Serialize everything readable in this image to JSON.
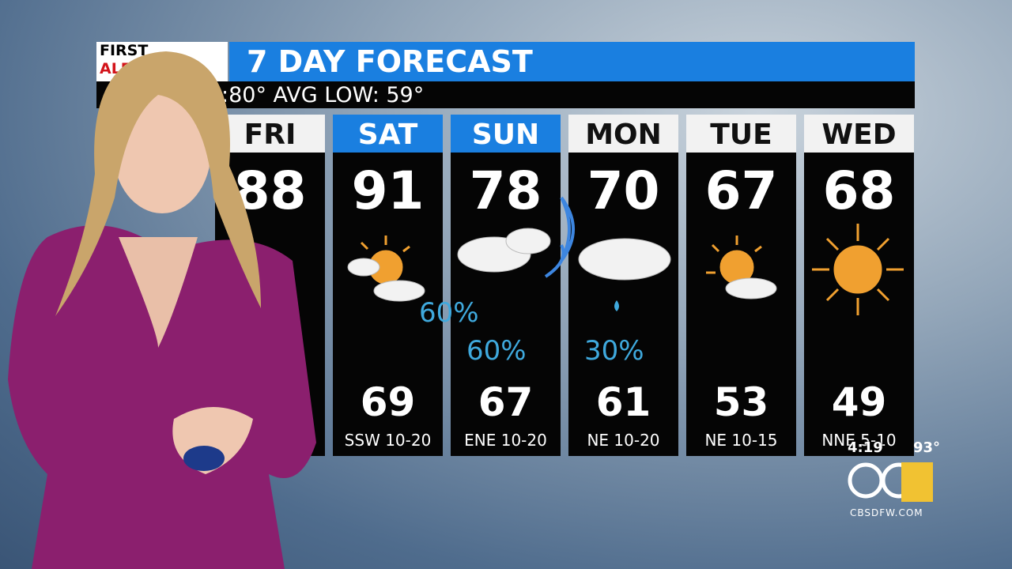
{
  "logo": {
    "line1": "FIRST",
    "line2": "ALERT"
  },
  "title": "7 DAY FORECAST",
  "averages": ":80°  AVG LOW: 59°",
  "days": [
    {
      "day": "FRI",
      "high": "88"
    },
    {
      "day": "SAT",
      "high": "91",
      "low": "69",
      "wind": "SSW 10-20"
    },
    {
      "day": "SUN",
      "high": "78",
      "low": "67",
      "wind": "ENE 10-20"
    },
    {
      "day": "MON",
      "high": "70",
      "low": "61",
      "wind": "NE 10-20"
    },
    {
      "day": "TUE",
      "high": "67",
      "low": "53",
      "wind": "NE 10-15"
    },
    {
      "day": "WED",
      "high": "68",
      "low": "49",
      "wind": "NNE 5-10"
    }
  ],
  "precip": [
    "60%",
    "60%",
    "30%"
  ],
  "station": {
    "time": "4:19",
    "temp": "93°",
    "site": "CBSDFW.COM"
  }
}
